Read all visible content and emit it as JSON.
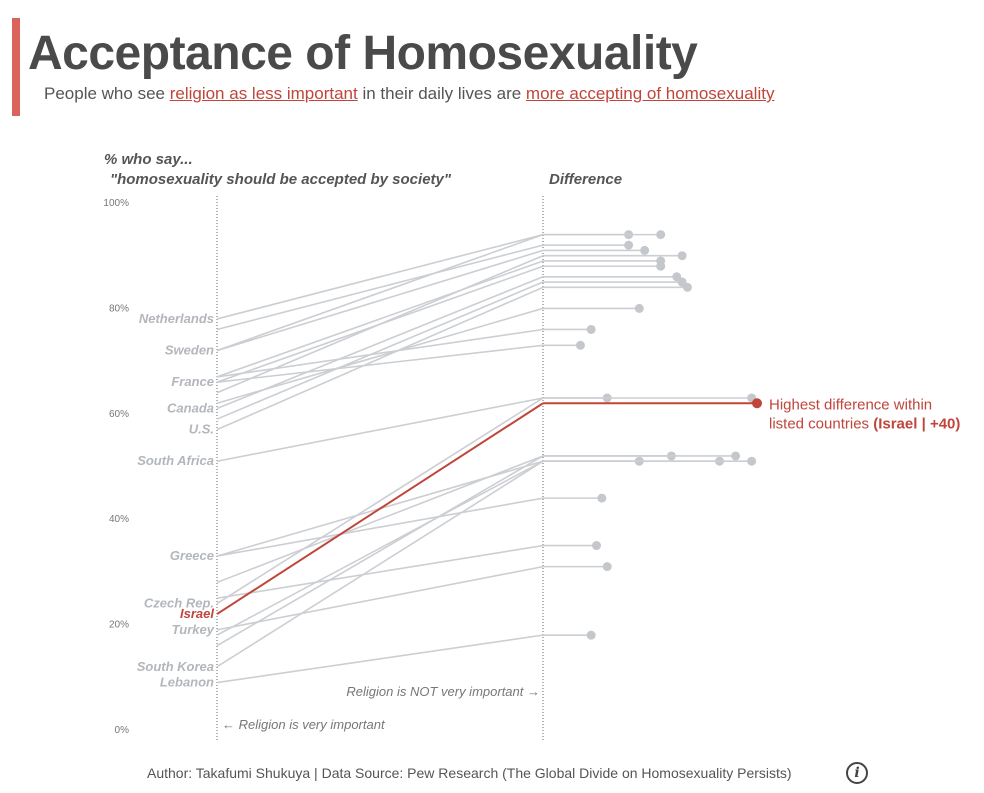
{
  "header": {
    "title": "Acceptance of Homosexuality",
    "subtitle_pre": "People who see ",
    "subtitle_hl1": "religion as less important",
    "subtitle_mid": " in their daily lives are ",
    "subtitle_hl2": "more accepting of homosexuality"
  },
  "footer": {
    "credit": "Author: Takafumi Shukuya | Data Source: Pew Research (The Global Divide on Homosexuality Persists)",
    "info_icon": "info-icon"
  },
  "colors": {
    "gray_line": "#cbced2",
    "gray_label": "#b3b7bc",
    "highlight": "#c0453b",
    "accent": "#d9645a"
  },
  "chart_data": {
    "type": "slope-and-dot",
    "ylabel_line1": "% who say...",
    "ylabel_line2": "\"homosexuality should be accepted by society\"",
    "difference_label": "Difference",
    "ylim": [
      0,
      100
    ],
    "y_ticks": [
      {
        "value": 0,
        "label": "0%"
      },
      {
        "value": 20,
        "label": "20%"
      },
      {
        "value": 40,
        "label": "40%"
      },
      {
        "value": 60,
        "label": "60%"
      },
      {
        "value": 80,
        "label": "80%"
      },
      {
        "value": 100,
        "label": "100%"
      }
    ],
    "left_axis_note": "← Religion is very important",
    "right_axis_note": "Religion is NOT very important →",
    "series": [
      {
        "name": "Netherlands",
        "very": 78,
        "not": 94,
        "diff": 16,
        "label": "Netherlands"
      },
      {
        "name": "",
        "very": 76,
        "not": 92,
        "diff": 16
      },
      {
        "name": "Sweden",
        "very": 72,
        "not": 94,
        "diff": 22,
        "label": "Sweden"
      },
      {
        "name": "",
        "very": 72,
        "not": 91,
        "diff": 19
      },
      {
        "name": "",
        "very": 67,
        "not": 89,
        "diff": 22
      },
      {
        "name": "France",
        "very": 66,
        "not": 88,
        "diff": 22,
        "label": "France"
      },
      {
        "name": "",
        "very": 64,
        "not": 90,
        "diff": 26
      },
      {
        "name": "",
        "very": 62,
        "not": 80,
        "diff": 18
      },
      {
        "name": "Canada",
        "very": 61,
        "not": 86,
        "diff": 25,
        "label": "Canada"
      },
      {
        "name": "",
        "very": 59,
        "not": 85,
        "diff": 26
      },
      {
        "name": "U.S.",
        "very": 57,
        "not": 84,
        "diff": 27,
        "label": "U.S."
      },
      {
        "name": "",
        "very": 67,
        "not": 76,
        "diff": 9
      },
      {
        "name": "",
        "very": 66,
        "not": 73,
        "diff": 7
      },
      {
        "name": "South Africa",
        "very": 51,
        "not": 63,
        "diff": 12,
        "label": "South Africa"
      },
      {
        "name": "Greece",
        "very": 33,
        "not": 51,
        "diff": 18,
        "label": "Greece"
      },
      {
        "name": "",
        "very": 33,
        "not": 44,
        "diff": 11
      },
      {
        "name": "",
        "very": 28,
        "not": 52,
        "diff": 24
      },
      {
        "name": "Czech Rep.",
        "very": 24,
        "not": 63,
        "diff": 39,
        "label": "Czech Rep."
      },
      {
        "name": "",
        "very": 25,
        "not": 35,
        "diff": 10
      },
      {
        "name": "Israel",
        "very": 22,
        "not": 62,
        "diff": 40,
        "label": "Israel",
        "highlight": true
      },
      {
        "name": "Turkey",
        "very": 19,
        "not": 31,
        "diff": 12,
        "label": "Turkey"
      },
      {
        "name": "",
        "very": 18,
        "not": 51,
        "diff": 33
      },
      {
        "name": "",
        "very": 16,
        "not": 52,
        "diff": 36
      },
      {
        "name": "South Korea",
        "very": 12,
        "not": 51,
        "diff": 39,
        "label": "South Korea"
      },
      {
        "name": "Lebanon",
        "very": 9,
        "not": 18,
        "diff": 9,
        "label": "Lebanon"
      }
    ],
    "annotation": {
      "line1": "Highest difference within",
      "line2_pre": "listed countries ",
      "line2_bold": "(Israel | +40)"
    }
  }
}
